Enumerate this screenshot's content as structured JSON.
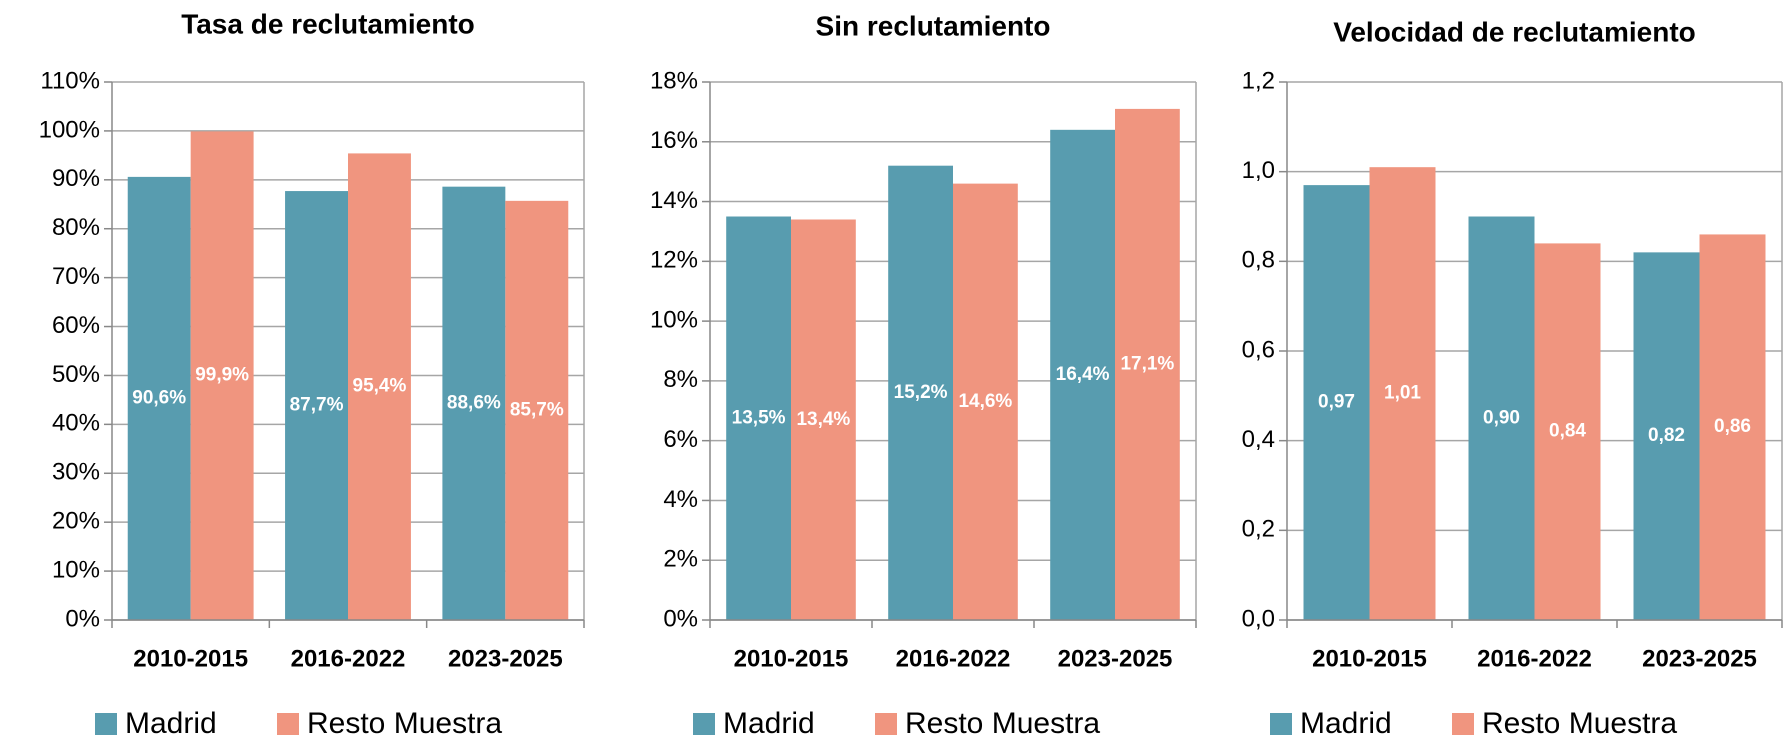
{
  "chart_data": [
    {
      "type": "bar",
      "title": "Tasa de reclutamiento",
      "categories": [
        "2010-2015",
        "2016-2022",
        "2023-2025"
      ],
      "series": [
        {
          "name": "Madrid",
          "color": "#589caf",
          "values": [
            90.6,
            87.7,
            88.6
          ],
          "value_labels": [
            "90,6%",
            "87,7%",
            "88,6%"
          ]
        },
        {
          "name": "Resto Muestra",
          "color": "#f0957f",
          "values": [
            99.9,
            95.4,
            85.7
          ],
          "value_labels": [
            "99,9%",
            "95,4%",
            "85,7%"
          ]
        }
      ],
      "ylim": [
        0,
        110
      ],
      "yticks": [
        {
          "value": 0,
          "label": "0%"
        },
        {
          "value": 10,
          "label": "10%"
        },
        {
          "value": 20,
          "label": "20%"
        },
        {
          "value": 30,
          "label": "30%"
        },
        {
          "value": 40,
          "label": "40%"
        },
        {
          "value": 50,
          "label": "50%"
        },
        {
          "value": 60,
          "label": "60%"
        },
        {
          "value": 70,
          "label": "70%"
        },
        {
          "value": 80,
          "label": "80%"
        },
        {
          "value": 90,
          "label": "90%"
        },
        {
          "value": 100,
          "label": "100%"
        },
        {
          "value": 110,
          "label": "110%"
        }
      ],
      "grid": true,
      "legend": "bottom"
    },
    {
      "type": "bar",
      "title": "Sin reclutamiento",
      "categories": [
        "2010-2015",
        "2016-2022",
        "2023-2025"
      ],
      "series": [
        {
          "name": "Madrid",
          "color": "#589caf",
          "values": [
            13.5,
            15.2,
            16.4
          ],
          "value_labels": [
            "13,5%",
            "15,2%",
            "16,4%"
          ]
        },
        {
          "name": "Resto Muestra",
          "color": "#f0957f",
          "values": [
            13.4,
            14.6,
            17.1
          ],
          "value_labels": [
            "13,4%",
            "14,6%",
            "17,1%"
          ]
        }
      ],
      "ylim": [
        0,
        18
      ],
      "yticks": [
        {
          "value": 0,
          "label": "0%"
        },
        {
          "value": 2,
          "label": "2%"
        },
        {
          "value": 4,
          "label": "4%"
        },
        {
          "value": 6,
          "label": "6%"
        },
        {
          "value": 8,
          "label": "8%"
        },
        {
          "value": 10,
          "label": "10%"
        },
        {
          "value": 12,
          "label": "12%"
        },
        {
          "value": 14,
          "label": "14%"
        },
        {
          "value": 16,
          "label": "16%"
        },
        {
          "value": 18,
          "label": "18%"
        }
      ],
      "grid": true,
      "legend": "bottom"
    },
    {
      "type": "bar",
      "title": "Velocidad de reclutamiento",
      "categories": [
        "2010-2015",
        "2016-2022",
        "2023-2025"
      ],
      "series": [
        {
          "name": "Madrid",
          "color": "#589caf",
          "values": [
            0.97,
            0.9,
            0.82
          ],
          "value_labels": [
            "0,97",
            "0,90",
            "0,82"
          ]
        },
        {
          "name": "Resto Muestra",
          "color": "#f0957f",
          "values": [
            1.01,
            0.84,
            0.86
          ],
          "value_labels": [
            "1,01",
            "0,84",
            "0,86"
          ]
        }
      ],
      "ylim": [
        0,
        1.2
      ],
      "yticks": [
        {
          "value": 0,
          "label": "0,0"
        },
        {
          "value": 0.2,
          "label": "0,2"
        },
        {
          "value": 0.4,
          "label": "0,4"
        },
        {
          "value": 0.6,
          "label": "0,6"
        },
        {
          "value": 0.8,
          "label": "0,8"
        },
        {
          "value": 1.0,
          "label": "1,0"
        },
        {
          "value": 1.2,
          "label": "1,2"
        }
      ],
      "grid": true,
      "legend": "bottom"
    }
  ]
}
